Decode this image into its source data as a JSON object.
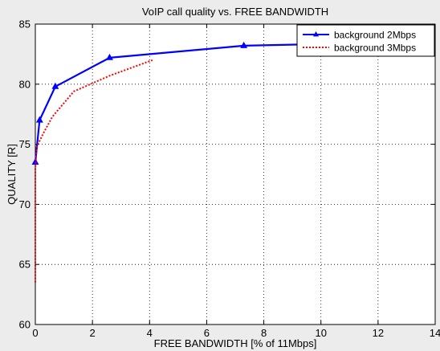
{
  "chart_data": {
    "type": "line",
    "title": "VoIP call quality vs. FREE BANDWIDTH",
    "xlabel": "FREE BANDWIDTH [% of 11Mbps]",
    "ylabel": "QUALITY [R]",
    "xlim": [
      0,
      14
    ],
    "ylim": [
      60,
      85
    ],
    "xticks": [
      0,
      2,
      4,
      6,
      8,
      10,
      12,
      14
    ],
    "yticks": [
      60,
      65,
      70,
      75,
      80,
      85
    ],
    "grid": true,
    "legend_position": "top-right",
    "series": [
      {
        "name": "background 2Mbps",
        "color": "#0000ff",
        "style": "solid",
        "marker": "triangle",
        "x": [
          0.0,
          0.15,
          0.7,
          2.6,
          7.3,
          9.3
        ],
        "y": [
          73.5,
          77.0,
          79.8,
          82.2,
          83.2,
          83.3
        ]
      },
      {
        "name": "background 3Mbps",
        "color": "#ff0000",
        "style": "dotted",
        "marker": "none",
        "x": [
          0.0,
          0.0,
          0.05,
          0.3,
          0.6,
          1.35,
          2.6,
          4.1
        ],
        "y": [
          63.5,
          73.0,
          74.8,
          76.0,
          77.3,
          79.4,
          80.7,
          82.0
        ]
      }
    ]
  }
}
